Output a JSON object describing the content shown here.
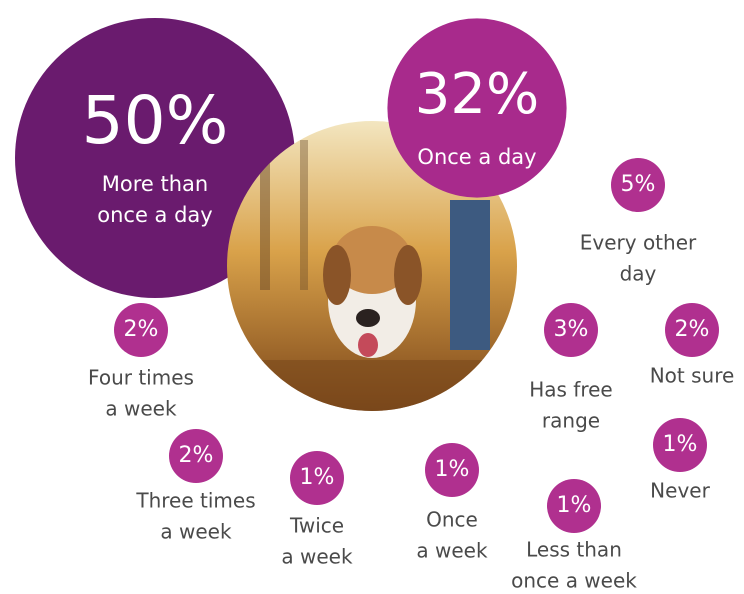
{
  "chart_data": {
    "type": "bubble",
    "categories": [
      [
        "More than",
        "once a day"
      ],
      [
        "Once a day"
      ],
      [
        "Every other",
        "day"
      ],
      [
        "Has free",
        "range"
      ],
      [
        "Not sure"
      ],
      [
        "Four times",
        "a week"
      ],
      [
        "Three times",
        "a week"
      ],
      [
        "Twice",
        "a week"
      ],
      [
        "Once",
        "a week"
      ],
      [
        "Less than",
        "once a week"
      ],
      [
        "Never"
      ]
    ],
    "values": [
      50,
      32,
      5,
      3,
      2,
      2,
      2,
      1,
      1,
      1,
      1
    ],
    "value_labels": [
      "50%",
      "32%",
      "5%",
      "3%",
      "2%",
      "2%",
      "2%",
      "1%",
      "1%",
      "1%",
      "1%"
    ],
    "colors": [
      "#6a1b6e",
      "#a82a8c",
      "#b0308f",
      "#b0308f",
      "#b0308f",
      "#b0308f",
      "#b0308f",
      "#b0308f",
      "#b0308f",
      "#b0308f",
      "#b0308f"
    ]
  }
}
